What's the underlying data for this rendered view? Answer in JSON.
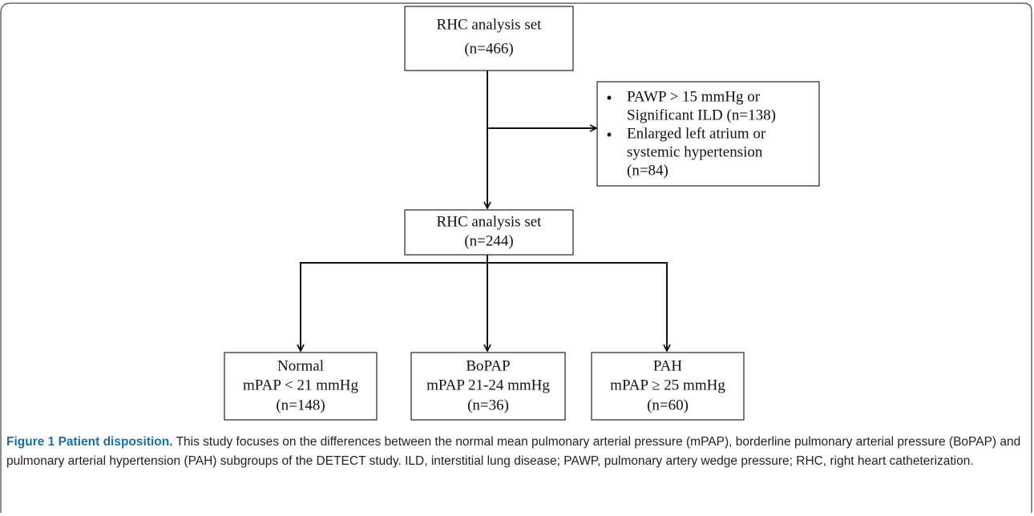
{
  "figure": {
    "nodes": [
      {
        "lines": [
          "RHC analysis set",
          "(n=466)"
        ]
      },
      {
        "lines": [
          "RHC analysis set",
          "(n=244)"
        ]
      },
      {
        "lines": [
          "Normal",
          "mPAP < 21 mmHg",
          "(n=148)"
        ]
      },
      {
        "lines": [
          "BoPAP",
          "mPAP 21-24 mmHg",
          "(n=36)"
        ]
      },
      {
        "lines": [
          "PAH",
          "mPAP ≥ 25 mmHg",
          "(n=60)"
        ]
      }
    ],
    "exclusions": [
      [
        "PAWP > 15 mmHg or",
        "Significant ILD (n=138)"
      ],
      [
        "Enlarged left atrium or",
        "systemic hypertension",
        "(n=84)"
      ]
    ],
    "caption": {
      "label": "Figure 1 Patient disposition.",
      "text": "This study focuses on the differences between the normal mean pulmonary arterial pressure (mPAP), borderline pulmonary arterial pressure (BoPAP) and pulmonary arterial hypertension (PAH) subgroups of the DETECT study. ILD, interstitial lung disease; PAWP, pulmonary artery wedge pressure; RHC, right heart catheterization."
    }
  }
}
